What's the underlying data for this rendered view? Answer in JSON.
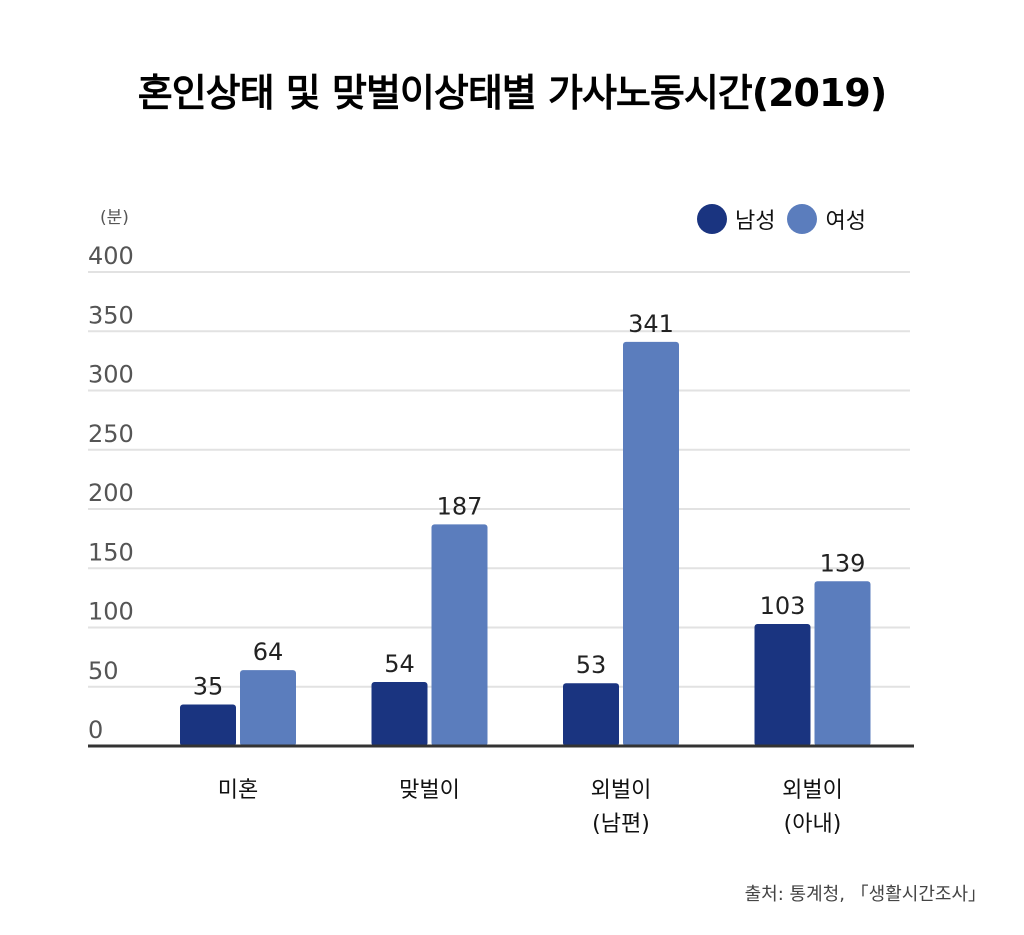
{
  "chart_data": {
    "type": "bar",
    "title": "혼인상태 및 맞벌이상태별 가사노동시간(2019)",
    "ylabel": "(분)",
    "xlabel": "",
    "ylim": [
      0,
      400
    ],
    "yticks": [
      "0",
      "50",
      "100",
      "150",
      "200",
      "250",
      "300",
      "350",
      "400"
    ],
    "ytick_values": [
      0,
      50,
      100,
      150,
      200,
      250,
      300,
      350,
      400
    ],
    "grid": true,
    "legend_position": "top-right",
    "categories": [
      [
        "미혼"
      ],
      [
        "맞벌이"
      ],
      [
        "외벌이",
        "(남편)"
      ],
      [
        "외벌이",
        "(아내)"
      ]
    ],
    "series": [
      {
        "name": "남성",
        "color": "#1a3480",
        "values": [
          35,
          54,
          53,
          103
        ]
      },
      {
        "name": "여성",
        "color": "#5b7dbd",
        "values": [
          64,
          187,
          341,
          139
        ]
      }
    ],
    "source": "출처: 통계청, 「생활시간조사」"
  }
}
